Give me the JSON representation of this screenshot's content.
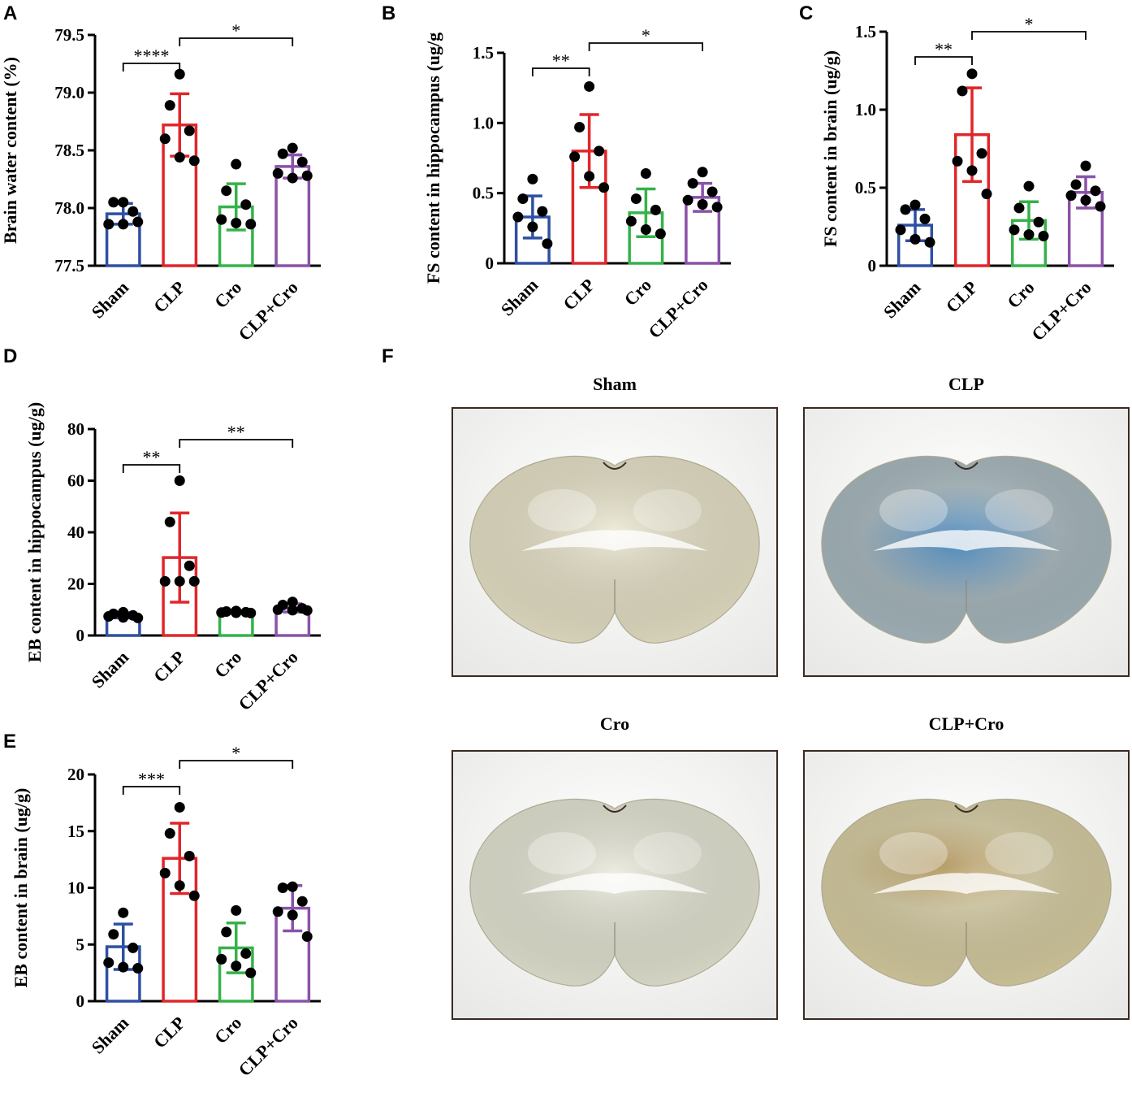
{
  "colors": {
    "Sham": "#2e4fa3",
    "CLP": "#e0262a",
    "Cro": "#35b24a",
    "CLP+Cro": "#8a52a8",
    "axis": "#000000",
    "dot": "#000000"
  },
  "chart_data": [
    {
      "panel": "A",
      "type": "bar",
      "categories": [
        "Sham",
        "CLP",
        "Cro",
        "CLP+Cro"
      ],
      "means": [
        77.95,
        78.72,
        78.01,
        78.36
      ],
      "sd": [
        0.09,
        0.27,
        0.2,
        0.1
      ],
      "points": [
        [
          78.05,
          78.05,
          77.97,
          77.86,
          77.86,
          77.88
        ],
        [
          79.16,
          78.89,
          78.67,
          78.6,
          78.44,
          78.41
        ],
        [
          78.38,
          78.15,
          78.03,
          77.9,
          77.87,
          77.86
        ],
        [
          78.52,
          78.47,
          78.4,
          78.3,
          78.26,
          78.28
        ]
      ],
      "ylabel": "Brain water content (%)",
      "ylim": [
        77.5,
        79.5
      ],
      "yticks": [
        "77.5",
        "78.0",
        "78.5",
        "79.0",
        "79.5"
      ],
      "significance": [
        {
          "label": "****",
          "from": 0,
          "to": 1
        },
        {
          "label": "*",
          "from": 1,
          "to": 3
        }
      ]
    },
    {
      "panel": "B",
      "type": "bar",
      "categories": [
        "Sham",
        "CLP",
        "Cro",
        "CLP+Cro"
      ],
      "means": [
        0.33,
        0.8,
        0.36,
        0.47
      ],
      "sd": [
        0.15,
        0.26,
        0.17,
        0.1
      ],
      "points": [
        [
          0.6,
          0.46,
          0.37,
          0.33,
          0.26,
          0.14
        ],
        [
          1.26,
          0.97,
          0.8,
          0.76,
          0.62,
          0.54
        ],
        [
          0.64,
          0.46,
          0.38,
          0.3,
          0.24,
          0.21
        ],
        [
          0.65,
          0.57,
          0.51,
          0.45,
          0.42,
          0.4
        ]
      ],
      "ylabel": "FS content in hippocampus (ug/g",
      "ylim": [
        0,
        1.5
      ],
      "yticks": [
        "0",
        "0.5",
        "1.0",
        "1.5"
      ],
      "significance": [
        {
          "label": "**",
          "from": 0,
          "to": 1
        },
        {
          "label": "*",
          "from": 1,
          "to": 3
        }
      ]
    },
    {
      "panel": "C",
      "type": "bar",
      "categories": [
        "Sham",
        "CLP",
        "Cro",
        "CLP+Cro"
      ],
      "means": [
        0.26,
        0.84,
        0.29,
        0.47
      ],
      "sd": [
        0.1,
        0.3,
        0.12,
        0.1
      ],
      "points": [
        [
          0.39,
          0.36,
          0.3,
          0.23,
          0.17,
          0.15
        ],
        [
          1.23,
          1.12,
          0.72,
          0.67,
          0.61,
          0.46
        ],
        [
          0.51,
          0.37,
          0.28,
          0.23,
          0.2,
          0.19
        ],
        [
          0.64,
          0.52,
          0.48,
          0.45,
          0.42,
          0.38
        ]
      ],
      "ylabel": "FS content in brain (ug/g)",
      "ylim": [
        0,
        1.5
      ],
      "yticks": [
        "0",
        "0.5",
        "1.0",
        "1.5"
      ],
      "significance": [
        {
          "label": "**",
          "from": 0,
          "to": 1
        },
        {
          "label": "*",
          "from": 1,
          "to": 3
        }
      ]
    },
    {
      "panel": "D",
      "type": "bar",
      "categories": [
        "Sham",
        "CLP",
        "Cro",
        "CLP+Cro"
      ],
      "means": [
        7.8,
        30.2,
        9.0,
        10.7
      ],
      "sd": [
        1.0,
        17.3,
        0.5,
        1.6
      ],
      "points": [
        [
          9.0,
          8.4,
          7.8,
          7.4,
          7.0,
          6.8
        ],
        [
          60.0,
          44.0,
          27.0,
          21.0,
          21.0,
          21.0
        ],
        [
          9.5,
          9.3,
          9.0,
          8.9,
          8.8,
          8.7
        ],
        [
          13.0,
          11.8,
          10.5,
          10.0,
          9.8,
          9.7
        ]
      ],
      "ylabel": "EB content in hippocampus (ug/g)",
      "ylim": [
        0,
        80
      ],
      "yticks": [
        "0",
        "20",
        "40",
        "60",
        "80"
      ],
      "significance": [
        {
          "label": "**",
          "from": 0,
          "to": 1
        },
        {
          "label": "**",
          "from": 1,
          "to": 3
        }
      ]
    },
    {
      "panel": "E",
      "type": "bar",
      "categories": [
        "Sham",
        "CLP",
        "Cro",
        "CLP+Cro"
      ],
      "means": [
        4.8,
        12.6,
        4.7,
        8.2
      ],
      "sd": [
        2.0,
        3.1,
        2.2,
        2.0
      ],
      "points": [
        [
          7.8,
          5.9,
          4.7,
          3.4,
          3.0,
          2.9
        ],
        [
          17.1,
          14.8,
          12.8,
          11.3,
          10.2,
          9.3
        ],
        [
          8.0,
          6.1,
          4.2,
          3.7,
          3.1,
          2.5
        ],
        [
          10.1,
          10.0,
          8.8,
          7.9,
          7.6,
          5.7
        ]
      ],
      "ylabel": "EB content in brain (ug/g)",
      "ylim": [
        0,
        20
      ],
      "yticks": [
        "0",
        "5",
        "10",
        "15",
        "20"
      ],
      "significance": [
        {
          "label": "***",
          "from": 0,
          "to": 1
        },
        {
          "label": "*",
          "from": 1,
          "to": 3
        }
      ]
    }
  ],
  "panel_f": {
    "letter": "F",
    "photos": [
      {
        "title": "Sham",
        "tint": "#e6e1c6",
        "stain": "none"
      },
      {
        "title": "CLP",
        "tint": "#a6b7bd",
        "stain": "blue"
      },
      {
        "title": "Cro",
        "tint": "#e4e4d3",
        "stain": "none"
      },
      {
        "title": "CLP+Cro",
        "tint": "#d6cca0",
        "stain": "yellow"
      }
    ]
  }
}
